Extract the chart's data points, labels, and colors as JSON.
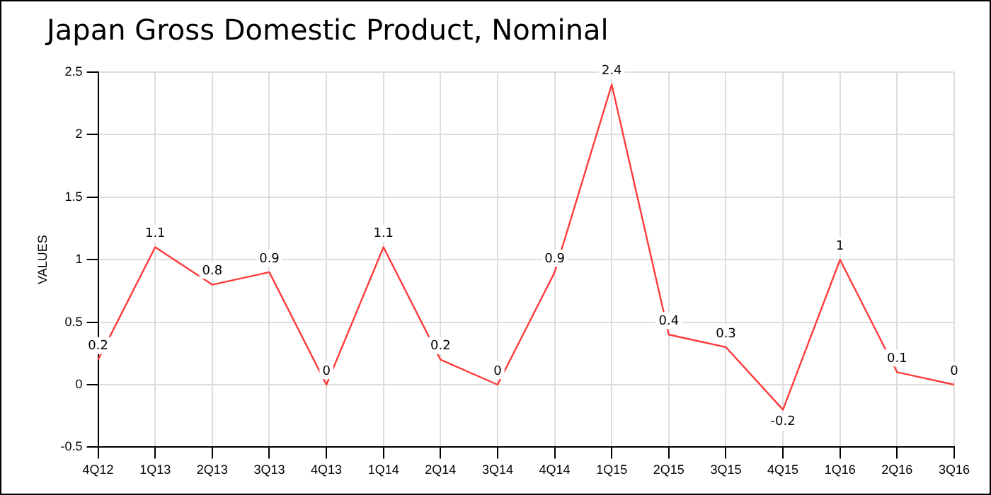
{
  "chart_data": {
    "type": "line",
    "title": "Japan Gross Domestic Product, Nominal",
    "ylabel": "VALUES",
    "categories": [
      "4Q12",
      "1Q13",
      "2Q13",
      "3Q13",
      "4Q13",
      "1Q14",
      "2Q14",
      "3Q14",
      "4Q14",
      "1Q15",
      "2Q15",
      "3Q15",
      "4Q15",
      "1Q16",
      "2Q16",
      "3Q16"
    ],
    "series": [
      {
        "color": "#ff3b3b",
        "values": [
          0.2,
          1.1,
          0.8,
          0.9,
          0,
          1.1,
          0.2,
          0,
          0.9,
          2.4,
          0.4,
          0.3,
          -0.2,
          1,
          0.1,
          0
        ]
      }
    ],
    "ylim": [
      -0.5,
      2.5
    ],
    "yticks": [
      -0.5,
      0,
      0.5,
      1,
      1.5,
      2,
      2.5
    ],
    "grid": true,
    "legend": false,
    "marker": "none",
    "line_style": "solid",
    "data_labels": true
  }
}
